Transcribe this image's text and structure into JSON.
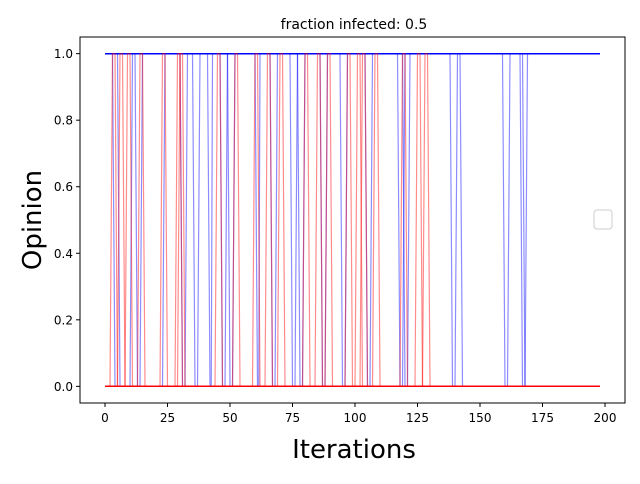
{
  "chart_data": {
    "type": "line",
    "title": "fraction infected: 0.5",
    "xlabel": "Iterations",
    "ylabel": "Opinion",
    "xlim": [
      -10,
      208
    ],
    "ylim": [
      -0.05,
      1.05
    ],
    "xticks": [
      "0",
      "25",
      "50",
      "75",
      "100",
      "125",
      "150",
      "175",
      "200"
    ],
    "xtick_values": [
      0,
      25,
      50,
      75,
      100,
      125,
      150,
      175,
      200
    ],
    "yticks": [
      "0.0",
      "0.2",
      "0.4",
      "0.6",
      "0.8",
      "1.0"
    ],
    "ytick_values": [
      0.0,
      0.2,
      0.4,
      0.6,
      0.8,
      1.0
    ],
    "grid": false,
    "legend": "center-right, empty",
    "colors": {
      "blue_series": "#0000ff",
      "red_series": "#ff0000"
    },
    "series": [
      {
        "color": "blue",
        "x": [
          0,
          3,
          4,
          14,
          15,
          198
        ],
        "y": [
          1,
          1,
          0,
          0,
          1,
          1
        ]
      },
      {
        "color": "blue",
        "x": [
          0,
          5,
          6,
          10,
          11,
          198
        ],
        "y": [
          1,
          1,
          0,
          0,
          1,
          1
        ]
      },
      {
        "color": "blue",
        "x": [
          0,
          12,
          13,
          23,
          24,
          198
        ],
        "y": [
          1,
          1,
          0,
          0,
          1,
          1
        ]
      },
      {
        "color": "blue",
        "x": [
          0,
          30,
          31,
          32,
          33,
          198
        ],
        "y": [
          1,
          1,
          0,
          0,
          1,
          1
        ]
      },
      {
        "color": "blue",
        "x": [
          0,
          35,
          36,
          37,
          38,
          198
        ],
        "y": [
          1,
          1,
          0,
          0,
          1,
          1
        ]
      },
      {
        "color": "blue",
        "x": [
          0,
          41,
          42,
          42.5,
          43,
          198
        ],
        "y": [
          1,
          1,
          0,
          0,
          1,
          1
        ]
      },
      {
        "color": "blue",
        "x": [
          0,
          46,
          47,
          48,
          49,
          198
        ],
        "y": [
          1,
          1,
          0,
          0,
          1,
          1
        ]
      },
      {
        "color": "blue",
        "x": [
          0,
          49,
          50,
          51,
          52,
          198
        ],
        "y": [
          1,
          1,
          0,
          0,
          1,
          1
        ]
      },
      {
        "color": "blue",
        "x": [
          0,
          60,
          61,
          61.5,
          62,
          198
        ],
        "y": [
          1,
          1,
          0,
          0,
          1,
          1
        ]
      },
      {
        "color": "blue",
        "x": [
          0,
          66,
          67,
          68,
          69,
          198
        ],
        "y": [
          1,
          1,
          0,
          0,
          1,
          1
        ]
      },
      {
        "color": "blue",
        "x": [
          0,
          74,
          75,
          76,
          77,
          198
        ],
        "y": [
          1,
          1,
          0,
          0,
          1,
          1
        ]
      },
      {
        "color": "blue",
        "x": [
          0,
          77,
          78,
          79,
          80,
          198
        ],
        "y": [
          1,
          1,
          0,
          0,
          1,
          1
        ]
      },
      {
        "color": "blue",
        "x": [
          0,
          86,
          87,
          88,
          89,
          198
        ],
        "y": [
          1,
          1,
          0,
          0,
          1,
          1
        ]
      },
      {
        "color": "blue",
        "x": [
          0,
          94,
          95,
          96,
          97,
          198
        ],
        "y": [
          1,
          1,
          0,
          0,
          1,
          1
        ]
      },
      {
        "color": "blue",
        "x": [
          0,
          104,
          105,
          106,
          107,
          198
        ],
        "y": [
          1,
          1,
          0,
          0,
          1,
          1
        ]
      },
      {
        "color": "blue",
        "x": [
          0,
          117,
          118,
          119,
          120,
          198
        ],
        "y": [
          1,
          1,
          0,
          0,
          1,
          1
        ]
      },
      {
        "color": "blue",
        "x": [
          0,
          119,
          120,
          121,
          122,
          198
        ],
        "y": [
          1,
          1,
          0,
          0,
          1,
          1
        ]
      },
      {
        "color": "blue",
        "x": [
          0,
          138,
          139,
          140,
          141,
          198
        ],
        "y": [
          1,
          1,
          0,
          0,
          1,
          1
        ]
      },
      {
        "color": "blue",
        "x": [
          0,
          142,
          143,
          190
        ],
        "y": [
          1,
          1,
          0,
          0
        ]
      },
      {
        "color": "blue",
        "x": [
          0,
          159,
          160,
          161,
          162,
          198
        ],
        "y": [
          1,
          1,
          0,
          0,
          1,
          1
        ]
      },
      {
        "color": "blue",
        "x": [
          0,
          166,
          167,
          168,
          169,
          198
        ],
        "y": [
          1,
          1,
          0,
          0,
          1,
          1
        ]
      },
      {
        "color": "blue",
        "x": [
          0,
          167,
          168,
          190
        ],
        "y": [
          1,
          1,
          0,
          0
        ]
      },
      {
        "color": "red",
        "x": [
          0,
          2,
          3,
          4,
          5,
          198
        ],
        "y": [
          0,
          0,
          1,
          1,
          0,
          0
        ]
      },
      {
        "color": "red",
        "x": [
          0,
          5,
          6,
          7,
          8,
          198
        ],
        "y": [
          0,
          0,
          1,
          1,
          0,
          0
        ]
      },
      {
        "color": "red",
        "x": [
          0,
          8,
          9,
          10,
          11,
          198
        ],
        "y": [
          0,
          0,
          1,
          1,
          0,
          0
        ]
      },
      {
        "color": "red",
        "x": [
          0,
          13,
          14,
          15,
          16,
          198
        ],
        "y": [
          0,
          0,
          1,
          1,
          0,
          0
        ]
      },
      {
        "color": "red",
        "x": [
          0,
          22,
          23,
          24,
          25,
          198
        ],
        "y": [
          0,
          0,
          1,
          1,
          0,
          0
        ]
      },
      {
        "color": "red",
        "x": [
          0,
          28,
          29,
          30,
          31,
          198
        ],
        "y": [
          0,
          0,
          1,
          1,
          0,
          0
        ]
      },
      {
        "color": "red",
        "x": [
          0,
          29,
          30,
          31,
          32,
          198
        ],
        "y": [
          0,
          0,
          1,
          1,
          0,
          0
        ]
      },
      {
        "color": "red",
        "x": [
          0,
          44,
          45,
          46,
          47,
          198
        ],
        "y": [
          0,
          0,
          1,
          1,
          0,
          0
        ]
      },
      {
        "color": "red",
        "x": [
          0,
          51,
          52,
          53,
          54,
          198
        ],
        "y": [
          0,
          0,
          1,
          1,
          0,
          0
        ]
      },
      {
        "color": "red",
        "x": [
          0,
          59,
          60,
          61,
          62,
          198
        ],
        "y": [
          0,
          0,
          1,
          1,
          0,
          0
        ]
      },
      {
        "color": "red",
        "x": [
          0,
          64,
          65,
          66,
          67,
          198
        ],
        "y": [
          0,
          0,
          1,
          1,
          0,
          0
        ]
      },
      {
        "color": "red",
        "x": [
          0,
          69,
          70,
          71,
          72,
          198
        ],
        "y": [
          0,
          0,
          1,
          1,
          0,
          0
        ]
      },
      {
        "color": "red",
        "x": [
          0,
          79,
          80,
          81,
          82,
          198
        ],
        "y": [
          0,
          0,
          1,
          1,
          0,
          0
        ]
      },
      {
        "color": "red",
        "x": [
          0,
          84,
          85,
          86,
          87,
          198
        ],
        "y": [
          0,
          0,
          1,
          1,
          0,
          0
        ]
      },
      {
        "color": "red",
        "x": [
          0,
          88,
          89,
          90,
          91,
          198
        ],
        "y": [
          0,
          0,
          1,
          1,
          0,
          0
        ]
      },
      {
        "color": "red",
        "x": [
          0,
          96,
          97,
          98,
          99,
          198
        ],
        "y": [
          0,
          0,
          1,
          1,
          0,
          0
        ]
      },
      {
        "color": "red",
        "x": [
          0,
          100,
          101,
          102,
          103,
          198
        ],
        "y": [
          0,
          0,
          1,
          1,
          0,
          0
        ]
      },
      {
        "color": "red",
        "x": [
          0,
          102,
          103,
          104,
          105,
          198
        ],
        "y": [
          0,
          0,
          1,
          1,
          0,
          0
        ]
      },
      {
        "color": "red",
        "x": [
          0,
          107,
          108,
          109,
          110,
          198
        ],
        "y": [
          0,
          0,
          1,
          1,
          0,
          0
        ]
      },
      {
        "color": "red",
        "x": [
          0,
          118,
          119,
          120,
          121,
          198
        ],
        "y": [
          0,
          0,
          1,
          1,
          0,
          0
        ]
      },
      {
        "color": "red",
        "x": [
          0,
          124,
          125,
          126,
          127,
          198
        ],
        "y": [
          0,
          0,
          1,
          1,
          0,
          0
        ]
      },
      {
        "color": "red",
        "x": [
          0,
          127,
          128,
          129,
          130,
          198
        ],
        "y": [
          0,
          0,
          1,
          1,
          0,
          0
        ]
      }
    ]
  }
}
